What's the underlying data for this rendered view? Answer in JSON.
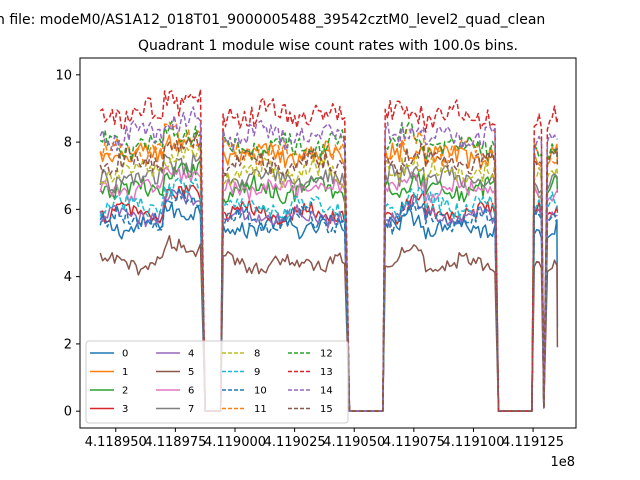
{
  "figure": {
    "suptitle": "n file: modeM0/AS1A12_018T01_9000005488_39542cztM0_level2_quad_clean"
  },
  "chart_data": {
    "type": "line",
    "title": "Quadrant 1 module wise count rates with 100.0s bins.",
    "xlabel": "",
    "ylabel": "",
    "x_offset_label": "1e8",
    "xlim": [
      4.118935,
      4.119143
    ],
    "ylim": [
      -0.5,
      10.5
    ],
    "x_ticks": [
      4.11895,
      4.118975,
      4.119,
      4.119025,
      4.11905,
      4.119075,
      4.1191,
      4.119125
    ],
    "x_tick_labels": [
      "4.118950",
      "4.118975",
      "4.119000",
      "4.119025",
      "4.119050",
      "4.119075",
      "4.119100",
      "4.119125"
    ],
    "y_ticks": [
      0,
      2,
      4,
      6,
      8,
      10
    ],
    "y_tick_labels": [
      "0",
      "2",
      "4",
      "6",
      "8",
      "10"
    ],
    "grid": false,
    "legend_placement": "lower-left",
    "legend_columns": 4,
    "time_segments": [
      {
        "start": 4.1189435,
        "end": 4.118986,
        "state": "on"
      },
      {
        "start": 4.1189875,
        "end": 4.118994,
        "state": "off"
      },
      {
        "start": 4.118995,
        "end": 4.1190465,
        "state": "on"
      },
      {
        "start": 4.119048,
        "end": 4.119062,
        "state": "off"
      },
      {
        "start": 4.119063,
        "end": 4.1191095,
        "state": "on"
      },
      {
        "start": 4.1191105,
        "end": 4.1191245,
        "state": "off"
      },
      {
        "start": 4.1191255,
        "end": 4.1191285,
        "state": "on"
      },
      {
        "start": 4.119129,
        "end": 4.1191305,
        "state": "dip"
      },
      {
        "start": 4.119131,
        "end": 4.119135,
        "state": "on"
      }
    ],
    "series": [
      {
        "name": "0",
        "color": "#1f77b4",
        "dash": "solid",
        "level": 5.5,
        "noise": 0.25,
        "end_value": 2.5
      },
      {
        "name": "1",
        "color": "#ff7f0e",
        "dash": "solid",
        "level": 7.6,
        "noise": 0.28,
        "end_value": 7.5
      },
      {
        "name": "2",
        "color": "#2ca02c",
        "dash": "solid",
        "level": 6.6,
        "noise": 0.28,
        "end_value": 6.5
      },
      {
        "name": "3",
        "color": "#d62728",
        "dash": "solid",
        "level": 5.9,
        "noise": 0.25,
        "end_value": 5.9
      },
      {
        "name": "4",
        "color": "#9467bd",
        "dash": "solid",
        "level": 5.8,
        "noise": 0.22,
        "end_value": 5.8
      },
      {
        "name": "5",
        "color": "#8c564b",
        "dash": "solid",
        "level": 4.4,
        "noise": 0.22,
        "end_value": 1.9
      },
      {
        "name": "6",
        "color": "#e377c2",
        "dash": "solid",
        "level": 6.6,
        "noise": 0.25,
        "end_value": 6.6
      },
      {
        "name": "7",
        "color": "#7f7f7f",
        "dash": "solid",
        "level": 6.9,
        "noise": 0.28,
        "end_value": 6.9
      },
      {
        "name": "8",
        "color": "#bcbd22",
        "dash": "dashed",
        "level": 7.1,
        "noise": 0.3,
        "end_value": 7.0
      },
      {
        "name": "9",
        "color": "#17becf",
        "dash": "dashed",
        "level": 6.1,
        "noise": 0.28,
        "end_value": 6.0
      },
      {
        "name": "10",
        "color": "#1f77b4",
        "dash": "dashed",
        "level": 5.7,
        "noise": 0.28,
        "end_value": 5.6
      },
      {
        "name": "11",
        "color": "#ff7f0e",
        "dash": "dashed",
        "level": 7.7,
        "noise": 0.28,
        "end_value": 7.6
      },
      {
        "name": "12",
        "color": "#2ca02c",
        "dash": "dashed",
        "level": 7.9,
        "noise": 0.3,
        "end_value": 7.8
      },
      {
        "name": "13",
        "color": "#d62728",
        "dash": "dashed",
        "level": 8.8,
        "noise": 0.35,
        "end_value": 8.7
      },
      {
        "name": "14",
        "color": "#9467bd",
        "dash": "dashed",
        "level": 8.2,
        "noise": 0.3,
        "end_value": 8.1
      },
      {
        "name": "15",
        "color": "#8c564b",
        "dash": "dashed",
        "level": 7.4,
        "noise": 0.28,
        "end_value": 7.3
      }
    ]
  }
}
